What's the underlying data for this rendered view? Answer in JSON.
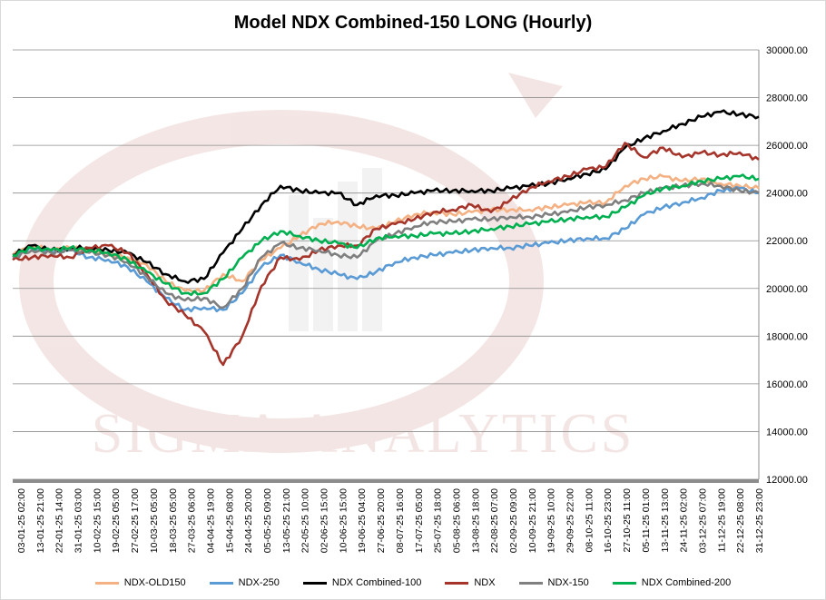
{
  "chart_data": {
    "type": "line",
    "title": "Model NDX Combined-150 LONG (Hourly)",
    "watermark": "SIGMA ANALYTICS",
    "ylim": [
      12000,
      30000
    ],
    "yticks": [
      "30000.00",
      "28000.00",
      "26000.00",
      "24000.00",
      "22000.00",
      "20000.00",
      "18000.00",
      "16000.00",
      "14000.00",
      "12000.00"
    ],
    "ytick_values": [
      30000,
      28000,
      26000,
      24000,
      22000,
      20000,
      18000,
      16000,
      14000,
      12000
    ],
    "x_labels": [
      "03-01-25 02:00",
      "13-01-25 21:00",
      "22-01-25 14:00",
      "31-01-25 03:00",
      "10-02-25 15:00",
      "19-02-25 05:00",
      "27-02-25 17:00",
      "10-03-25 05:00",
      "18-03-25 05:00",
      "27-03-25 06:00",
      "04-04-25 19:00",
      "15-04-25 08:00",
      "24-04-25 20:00",
      "05-05-25 09:00",
      "13-05-25 21:00",
      "22-05-25 10:00",
      "02-06-25 15:00",
      "10-06-25 15:00",
      "19-06-25 04:00",
      "27-06-25 20:00",
      "08-07-25 16:00",
      "17-07-25 05:00",
      "25-07-25 18:00",
      "05-08-25 06:00",
      "13-08-25 18:00",
      "22-08-25 07:00",
      "02-09-25 09:00",
      "10-09-25 21:00",
      "19-09-25 10:00",
      "29-09-25 22:00",
      "08-10-25 11:00",
      "16-10-25 23:00",
      "27-10-25 11:00",
      "05-11-25 01:00",
      "13-11-25 13:00",
      "24-11-25 02:00",
      "03-12-25 07:00",
      "11-12-25 19:00",
      "22-12-25 08:00",
      "31-12-25 23:00"
    ],
    "series": [
      {
        "name": "NDX-OLD150",
        "color": "#f4b183",
        "values": [
          21400,
          21800,
          21600,
          21700,
          21600,
          21500,
          21300,
          21000,
          20300,
          19900,
          19900,
          20600,
          20300,
          21200,
          21700,
          22200,
          22700,
          22800,
          22600,
          22500,
          22800,
          23100,
          23200,
          23100,
          23200,
          23300,
          23300,
          23300,
          23400,
          23500,
          23600,
          23600,
          24300,
          24600,
          24700,
          24500,
          24600,
          24400,
          24300,
          24200
        ]
      },
      {
        "name": "NDX-250",
        "color": "#5b9bd5",
        "values": [
          21300,
          21700,
          21500,
          21600,
          21300,
          21200,
          20900,
          20300,
          19600,
          19100,
          19200,
          19100,
          19800,
          20900,
          21400,
          21100,
          20800,
          20600,
          20400,
          20700,
          21100,
          21300,
          21400,
          21500,
          21600,
          21700,
          21700,
          21800,
          21900,
          22000,
          22100,
          22100,
          22500,
          23100,
          23400,
          23600,
          23800,
          24100,
          24200,
          24000
        ]
      },
      {
        "name": "NDX Combined-100",
        "color": "#000000",
        "values": [
          21400,
          21800,
          21600,
          21700,
          21700,
          21600,
          21500,
          21100,
          20600,
          20300,
          20400,
          21500,
          22500,
          23500,
          24300,
          24100,
          24000,
          24000,
          23500,
          23900,
          23900,
          24000,
          24100,
          24100,
          24100,
          24100,
          24200,
          24300,
          24400,
          24600,
          24800,
          25000,
          25900,
          26300,
          26600,
          26900,
          27200,
          27400,
          27300,
          27200
        ]
      },
      {
        "name": "NDX",
        "color": "#a5352b",
        "values": [
          21200,
          21300,
          21400,
          21300,
          21700,
          21800,
          21500,
          20600,
          19500,
          18900,
          18200,
          16800,
          18000,
          20100,
          21300,
          21200,
          21600,
          21800,
          21800,
          22500,
          22700,
          22900,
          23200,
          23300,
          23500,
          23200,
          23700,
          24200,
          24500,
          24700,
          25000,
          25100,
          26100,
          25500,
          25900,
          25500,
          25700,
          25600,
          25700,
          25400
        ]
      },
      {
        "name": "NDX-150",
        "color": "#7f7f7f",
        "values": [
          21300,
          21600,
          21500,
          21600,
          21500,
          21400,
          21100,
          20500,
          19800,
          19500,
          19600,
          19200,
          20000,
          21300,
          21900,
          21700,
          21600,
          21400,
          21300,
          22000,
          22300,
          22600,
          22800,
          22800,
          22900,
          22900,
          23000,
          23000,
          23100,
          23200,
          23400,
          23500,
          23700,
          24000,
          24200,
          24300,
          24400,
          24300,
          24100,
          24000
        ]
      },
      {
        "name": "NDX Combined-200",
        "color": "#00b050",
        "values": [
          21400,
          21700,
          21600,
          21700,
          21600,
          21500,
          21200,
          20700,
          20200,
          19800,
          19800,
          20400,
          21300,
          22000,
          22400,
          22200,
          22000,
          21900,
          21700,
          22100,
          22200,
          22200,
          22300,
          22300,
          22400,
          22500,
          22600,
          22700,
          22800,
          22900,
          23000,
          23000,
          23400,
          23900,
          24200,
          24300,
          24500,
          24600,
          24700,
          24600
        ]
      }
    ]
  }
}
